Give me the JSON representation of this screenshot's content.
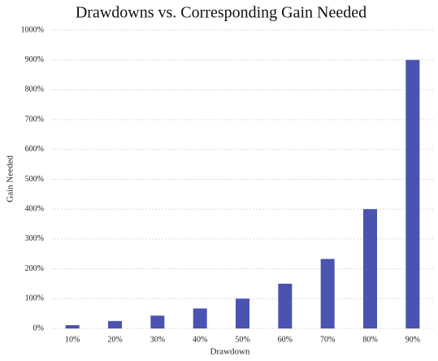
{
  "chart_data": {
    "type": "bar",
    "title": "Drawdowns vs. Corresponding Gain Needed",
    "x_label": "Drawdown",
    "y_label": "Gain Needed",
    "categories": [
      "10%",
      "20%",
      "30%",
      "40%",
      "50%",
      "60%",
      "70%",
      "80%",
      "90%"
    ],
    "values": [
      11,
      25,
      43,
      67,
      100,
      150,
      233,
      400,
      900
    ],
    "color": "#4a53b0",
    "ylim": [
      0,
      1000
    ],
    "yticks": [
      {
        "value": 0,
        "label": "0%"
      },
      {
        "value": 100,
        "label": "100%"
      },
      {
        "value": 200,
        "label": "200%"
      },
      {
        "value": 300,
        "label": "300%"
      },
      {
        "value": 400,
        "label": "400%"
      },
      {
        "value": 500,
        "label": "500%"
      },
      {
        "value": 600,
        "label": "600%"
      },
      {
        "value": 700,
        "label": "700%"
      },
      {
        "value": 800,
        "label": "800%"
      },
      {
        "value": 900,
        "label": "900%"
      },
      {
        "value": 1000,
        "label": "1000%"
      }
    ],
    "grid": true
  }
}
